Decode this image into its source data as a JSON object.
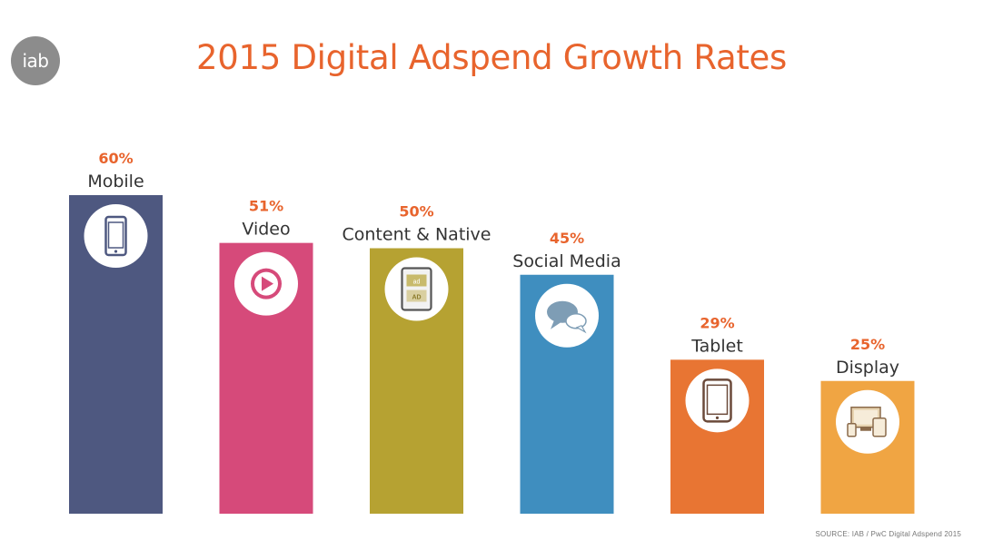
{
  "logo": {
    "text": "iab"
  },
  "source": "SOURCE: IAB / PwC Digital Adspend 2015",
  "chart_data": {
    "type": "bar",
    "title": "2015 Digital Adspend Growth Rates",
    "categories": [
      "Mobile",
      "Video",
      "Content & Native",
      "Social Media",
      "Tablet",
      "Display"
    ],
    "values": [
      60,
      51,
      50,
      45,
      29,
      25
    ],
    "value_labels": [
      "60%",
      "51%",
      "50%",
      "45%",
      "29%",
      "25%"
    ],
    "bar_colors": [
      "#4e5880",
      "#d64a7a",
      "#b6a232",
      "#3f8ebf",
      "#e87533",
      "#f0a543"
    ],
    "icons": [
      "mobile-phone-icon",
      "play-video-icon",
      "native-ad-icon",
      "chat-bubbles-icon",
      "tablet-icon",
      "multi-device-icon"
    ],
    "ad_icon_labels": [
      "ad",
      "AD"
    ],
    "value_label_color": "#e8642d",
    "xlabel": "",
    "ylabel": "",
    "grid": false,
    "legend": "none"
  }
}
